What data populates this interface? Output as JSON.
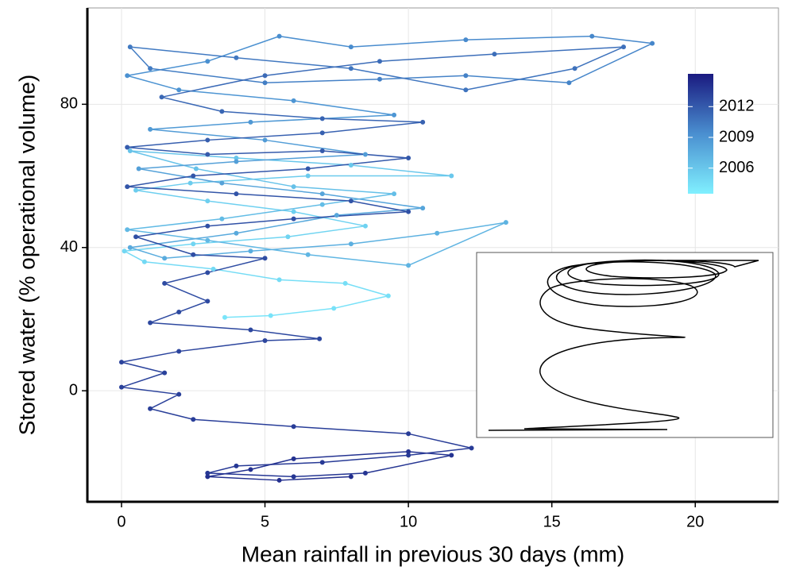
{
  "chart_data": {
    "type": "scatter",
    "xlabel": "Mean rainfall in previous 30 days (mm)",
    "ylabel": "Stored water (% operational volume)",
    "xlim": [
      -1.19,
      22.9
    ],
    "ylim": [
      -31,
      106.9
    ],
    "xticks": [
      0,
      5,
      10,
      15,
      20
    ],
    "yticks": [
      0,
      40,
      80
    ],
    "grid": true,
    "x": [
      3.6,
      5.2,
      7.4,
      9.3,
      7.8,
      5.5,
      3.2,
      0.8,
      0.1,
      2.5,
      5.8,
      8.5,
      6,
      3,
      0.5,
      2.4,
      6.5,
      11.5,
      8,
      4,
      0.3,
      2.6,
      6,
      9.5,
      7,
      3.5,
      0.2,
      3,
      6.5,
      10,
      13.4,
      11,
      8,
      4.5,
      1.5,
      0.3,
      4,
      7.5,
      10.5,
      7,
      3.5,
      0.6,
      4,
      8.5,
      5,
      1,
      4.5,
      9.5,
      6,
      2,
      0.2,
      3,
      5.5,
      8,
      12,
      16.4,
      18.5,
      15.6,
      12,
      9,
      5,
      1,
      0.3,
      4,
      8,
      12,
      15.8,
      17.5,
      13,
      9,
      5,
      1.4,
      3.5,
      7,
      10.5,
      7,
      3,
      0.2,
      3,
      7,
      10,
      6.5,
      2.5,
      0.2,
      4,
      8,
      10,
      6,
      3,
      0.5,
      2.5,
      5,
      3,
      1.5,
      3,
      2,
      1,
      4.5,
      6.9,
      5,
      2,
      0,
      1.5,
      0,
      2,
      1,
      2.5,
      6,
      10,
      12.2,
      10,
      7,
      4,
      3,
      6,
      8.5,
      11.5,
      10,
      6,
      4.5,
      3,
      5.5,
      8
    ],
    "values": [
      20.5,
      21,
      23,
      26.5,
      30,
      31,
      34,
      36,
      39,
      41,
      43,
      46,
      50,
      53,
      56,
      58,
      60,
      60,
      63,
      65,
      67,
      62,
      57,
      55,
      52,
      48,
      45,
      42,
      38,
      35,
      47,
      44,
      41,
      39,
      37,
      40,
      44,
      49,
      51,
      55,
      58,
      62,
      64,
      66,
      70,
      73,
      75,
      77,
      81,
      84,
      88,
      92,
      99,
      96,
      98,
      99,
      97,
      86,
      88,
      87,
      86,
      90,
      96,
      93,
      90,
      84,
      90,
      96,
      94,
      92,
      88,
      82,
      78,
      76,
      75,
      72,
      70,
      68,
      66,
      67,
      65,
      62,
      60,
      57,
      55,
      53,
      50,
      48,
      46,
      43,
      38,
      37,
      33,
      30,
      25,
      22,
      19,
      17,
      14.5,
      14,
      11,
      8,
      5,
      1,
      -1,
      -5,
      -8,
      -10,
      -12,
      -16,
      -18,
      -20,
      -21,
      -23,
      -24,
      -23,
      -18,
      -17,
      -19,
      -22,
      -24,
      -25,
      -24
    ],
    "years": [
      2004.2,
      2004.3,
      2004.4,
      2004.5,
      2004.6,
      2004.7,
      2004.8,
      2004.9,
      2005,
      2005.1,
      2005.2,
      2005.3,
      2005.4,
      2005.5,
      2005.6,
      2005.7,
      2005.8,
      2005.9,
      2006,
      2006.1,
      2006.2,
      2006.3,
      2006.4,
      2006.5,
      2006.6,
      2006.7,
      2006.8,
      2006.9,
      2007,
      2007.1,
      2007.2,
      2007.3,
      2007.4,
      2007.5,
      2007.6,
      2007.7,
      2007.8,
      2007.9,
      2008,
      2008.1,
      2008.2,
      2008.3,
      2008.4,
      2008.5,
      2008.6,
      2008.7,
      2008.8,
      2008.9,
      2009,
      2009.1,
      2009.2,
      2009.3,
      2009.4,
      2009.5,
      2009.6,
      2009.7,
      2009.8,
      2009.9,
      2010,
      2010.1,
      2010.2,
      2010.3,
      2010.4,
      2010.5,
      2010.6,
      2010.7,
      2010.8,
      2010.9,
      2011,
      2011.1,
      2011.2,
      2011.3,
      2011.4,
      2011.5,
      2011.6,
      2011.7,
      2011.8,
      2011.9,
      2012,
      2012.05,
      2012.1,
      2012.15,
      2012.2,
      2012.25,
      2012.3,
      2012.35,
      2012.4,
      2012.45,
      2012.5,
      2012.55,
      2012.6,
      2012.65,
      2012.7,
      2012.75,
      2012.8,
      2012.85,
      2012.9,
      2012.95,
      2013,
      2013.05,
      2013.1,
      2013.15,
      2013.2,
      2013.25,
      2013.3,
      2013.35,
      2013.4,
      2013.45,
      2013.5,
      2013.55,
      2013.6,
      2013.65,
      2013.7,
      2013.75,
      2013.8,
      2013.85,
      2013.9,
      2013.95,
      2014,
      2014.05,
      2014.1,
      2014.15,
      2014.2
    ],
    "color_scale": {
      "lim": [
        2003.5,
        2015.2
      ],
      "ticks": [
        2006,
        2009,
        2012
      ],
      "colors": [
        "#80f0ff",
        "#4a8fd0",
        "#1a1a80"
      ]
    }
  }
}
